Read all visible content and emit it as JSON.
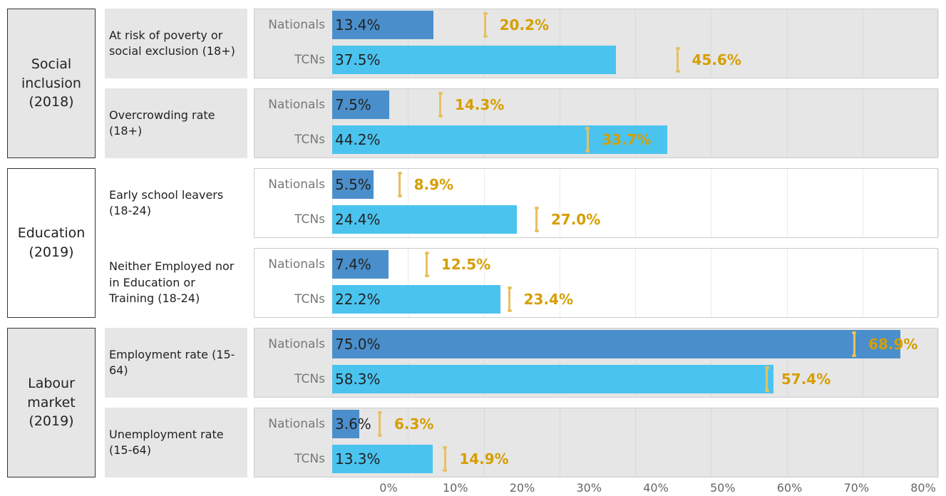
{
  "chart_data": {
    "type": "bar",
    "groups": [
      {
        "label": "Social inclusion (2018)",
        "categories": [
          "At risk of poverty or social exclusion (18+)",
          "Overcrowding rate (18+)"
        ]
      },
      {
        "label": "Education (2019)",
        "categories": [
          "Early school leavers (18-24)",
          "Neither Employed nor in Education or Training (18-24)"
        ]
      },
      {
        "label": "Labour market (2019)",
        "categories": [
          "Employment rate (15-64)",
          "Unemployment rate (15-64)"
        ]
      }
    ],
    "series": [
      {
        "name": "Nationals",
        "color": "#4a8fcb",
        "values": [
          13.4,
          7.5,
          5.5,
          7.4,
          75.0,
          3.6
        ],
        "value_labels": [
          "13.4%",
          "7.5%",
          "5.5%",
          "7.4%",
          "75.0%",
          "3.6%"
        ]
      },
      {
        "name": "TCNs",
        "color": "#4bc3ef",
        "values": [
          37.5,
          44.2,
          24.4,
          22.2,
          58.3,
          13.3
        ],
        "value_labels": [
          "37.5%",
          "44.2%",
          "24.4%",
          "22.2%",
          "58.3%",
          "13.3%"
        ]
      }
    ],
    "reference": {
      "color": "#e8c060",
      "label_color": "#d69e00",
      "values": [
        [
          20.2,
          45.6
        ],
        [
          14.3,
          33.7
        ],
        [
          8.9,
          27.0
        ],
        [
          12.5,
          23.4
        ],
        [
          68.9,
          57.4
        ],
        [
          6.3,
          14.9
        ]
      ],
      "value_labels": [
        [
          "20.2%",
          "45.6%"
        ],
        [
          "14.3%",
          "33.7%"
        ],
        [
          "8.9%",
          "27.0%"
        ],
        [
          "12.5%",
          "23.4%"
        ],
        [
          "68.9%",
          "57.4%"
        ],
        [
          "6.3%",
          "14.9%"
        ]
      ]
    },
    "xlim": [
      0,
      80
    ],
    "xticks": [
      {
        "value": 0,
        "label": "0%"
      },
      {
        "value": 10,
        "label": "10%"
      },
      {
        "value": 20,
        "label": "20%"
      },
      {
        "value": 30,
        "label": "30%"
      },
      {
        "value": 40,
        "label": "40%"
      },
      {
        "value": 50,
        "label": "50%"
      },
      {
        "value": 60,
        "label": "60%"
      },
      {
        "value": 70,
        "label": "70%"
      },
      {
        "value": 80,
        "label": "80%"
      }
    ],
    "grid": true
  }
}
